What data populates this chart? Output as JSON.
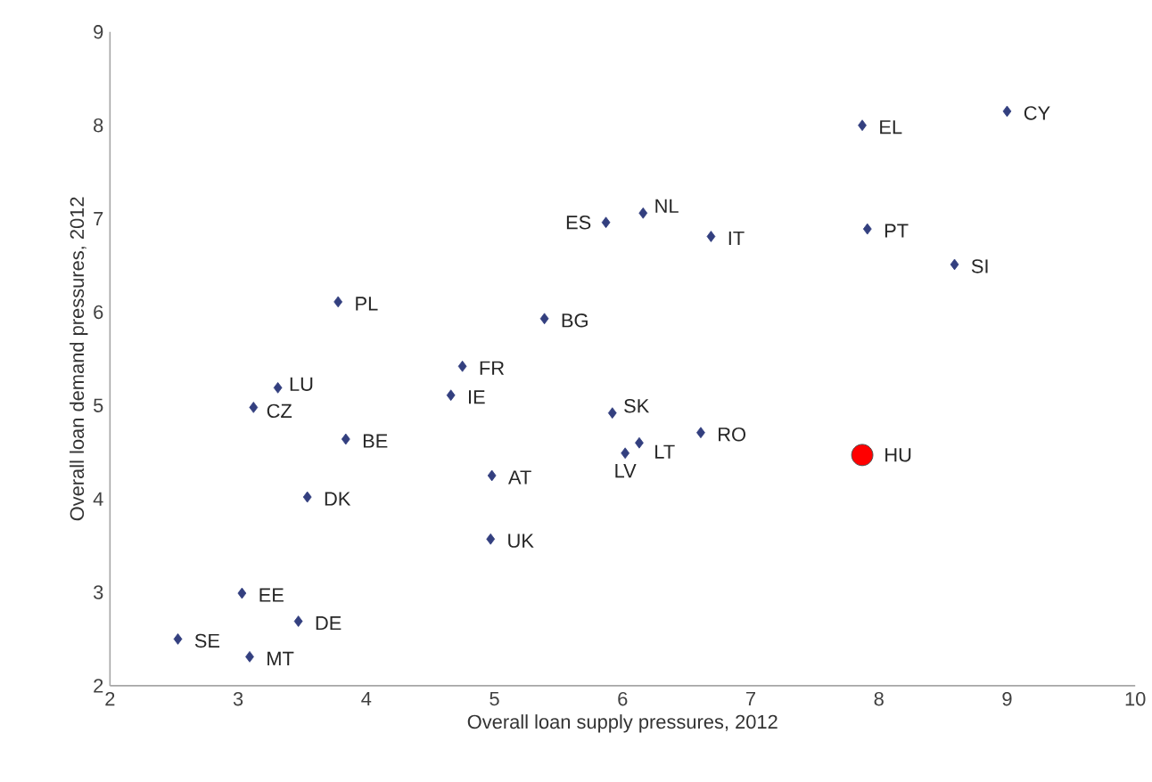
{
  "chart_data": {
    "type": "scatter",
    "xlabel": "Overall loan supply pressures, 2012",
    "ylabel": "Overall loan demand pressures, 2012",
    "xlim": [
      2,
      10
    ],
    "ylim": [
      2,
      9
    ],
    "xticks": [
      2,
      3,
      4,
      5,
      6,
      7,
      8,
      9,
      10
    ],
    "yticks": [
      2,
      3,
      4,
      5,
      6,
      7,
      8,
      9
    ],
    "grid": false,
    "series": [
      {
        "color": "#333f7f",
        "marker": "diamond",
        "x": [
          9.0,
          7.87,
          6.16,
          5.87,
          6.69,
          7.91,
          8.59,
          3.78,
          5.39,
          4.75,
          3.31,
          4.66,
          3.12,
          5.92,
          3.84,
          6.13,
          6.61,
          6.02,
          4.98,
          3.54,
          4.97,
          3.03,
          3.47,
          2.53,
          3.09
        ],
        "values": [
          8.15,
          8.0,
          7.06,
          6.96,
          6.81,
          6.89,
          6.51,
          6.11,
          5.93,
          5.42,
          5.19,
          5.11,
          4.98,
          4.92,
          4.64,
          4.6,
          4.71,
          4.49,
          4.25,
          4.02,
          3.57,
          2.99,
          2.69,
          2.5,
          2.31
        ]
      },
      {
        "color": "#ff0000",
        "marker": "circle",
        "x": [
          7.87
        ],
        "values": [
          4.47
        ]
      }
    ],
    "annotations": [
      {
        "text": "CY",
        "x": 9.0,
        "y": 8.15
      },
      {
        "text": "EL",
        "x": 7.87,
        "y": 8.0
      },
      {
        "text": "NL",
        "x": 6.16,
        "y": 7.06
      },
      {
        "text": "ES",
        "x": 5.87,
        "y": 6.96
      },
      {
        "text": "IT",
        "x": 6.69,
        "y": 6.81
      },
      {
        "text": "PT",
        "x": 7.91,
        "y": 6.89
      },
      {
        "text": "SI",
        "x": 8.59,
        "y": 6.51
      },
      {
        "text": "PL",
        "x": 3.78,
        "y": 6.11
      },
      {
        "text": "BG",
        "x": 5.39,
        "y": 5.93
      },
      {
        "text": "FR",
        "x": 4.75,
        "y": 5.42
      },
      {
        "text": "LU",
        "x": 3.31,
        "y": 5.19
      },
      {
        "text": "IE",
        "x": 4.66,
        "y": 5.11
      },
      {
        "text": "CZ",
        "x": 3.12,
        "y": 4.98
      },
      {
        "text": "SK",
        "x": 5.92,
        "y": 4.92
      },
      {
        "text": "BE",
        "x": 3.84,
        "y": 4.64
      },
      {
        "text": "LT",
        "x": 6.13,
        "y": 4.6
      },
      {
        "text": "RO",
        "x": 6.61,
        "y": 4.71
      },
      {
        "text": "LV",
        "x": 6.02,
        "y": 4.49
      },
      {
        "text": "AT",
        "x": 4.98,
        "y": 4.25
      },
      {
        "text": "DK",
        "x": 3.54,
        "y": 4.02
      },
      {
        "text": "UK",
        "x": 4.97,
        "y": 3.57
      },
      {
        "text": "EE",
        "x": 3.03,
        "y": 2.99
      },
      {
        "text": "DE",
        "x": 3.47,
        "y": 2.69
      },
      {
        "text": "SE",
        "x": 2.53,
        "y": 2.5
      },
      {
        "text": "MT",
        "x": 3.09,
        "y": 2.31
      },
      {
        "text": "HU",
        "x": 7.87,
        "y": 4.47
      }
    ]
  }
}
